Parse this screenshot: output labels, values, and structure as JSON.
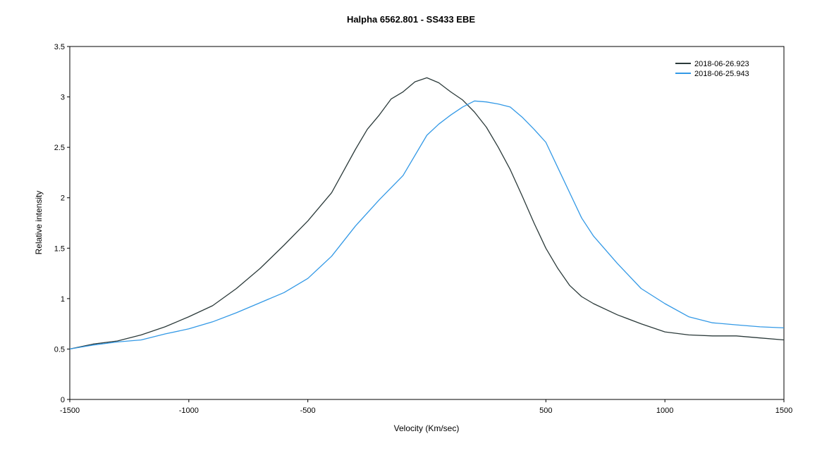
{
  "chart_data": {
    "type": "line",
    "title": "Halpha 6562.801 - SS433   EBE",
    "xlabel": "Velocity (Km/sec)",
    "ylabel": "Relative intensity",
    "xlim": [
      -1500,
      1500
    ],
    "ylim": [
      0,
      3.5
    ],
    "x_ticks": [
      -1500,
      -1000,
      -500,
      500,
      1000,
      1500
    ],
    "x_tick_labels": [
      "-1500",
      "-1000",
      "-500",
      "500",
      "1000",
      "1500"
    ],
    "y_ticks": [
      0,
      0.5,
      1,
      1.5,
      2,
      2.5,
      3,
      3.5
    ],
    "y_tick_labels": [
      "0",
      "0.5",
      "1",
      "1.5",
      "2",
      "2.5",
      "3",
      "3.5"
    ],
    "grid": false,
    "legend_position": "top-right",
    "series": [
      {
        "name": "2018-06-26.923",
        "color": "#2b3a3a",
        "x": [
          -1500,
          -1400,
          -1300,
          -1200,
          -1100,
          -1000,
          -900,
          -800,
          -700,
          -600,
          -500,
          -400,
          -300,
          -250,
          -200,
          -150,
          -100,
          -50,
          0,
          50,
          100,
          150,
          200,
          250,
          300,
          350,
          400,
          450,
          500,
          550,
          600,
          650,
          700,
          800,
          900,
          1000,
          1100,
          1200,
          1300,
          1400,
          1500
        ],
        "y": [
          0.5,
          0.55,
          0.58,
          0.64,
          0.72,
          0.82,
          0.93,
          1.1,
          1.3,
          1.53,
          1.77,
          2.05,
          2.48,
          2.68,
          2.82,
          2.98,
          3.05,
          3.15,
          3.19,
          3.14,
          3.05,
          2.97,
          2.85,
          2.7,
          2.5,
          2.28,
          2.02,
          1.75,
          1.5,
          1.3,
          1.13,
          1.02,
          0.95,
          0.84,
          0.75,
          0.67,
          0.64,
          0.63,
          0.63,
          0.61,
          0.59
        ]
      },
      {
        "name": "2018-06-25.943",
        "color": "#3399e6",
        "x": [
          -1500,
          -1400,
          -1300,
          -1200,
          -1100,
          -1000,
          -900,
          -800,
          -700,
          -600,
          -500,
          -400,
          -300,
          -200,
          -100,
          0,
          50,
          100,
          150,
          200,
          250,
          300,
          350,
          400,
          450,
          500,
          550,
          600,
          650,
          700,
          800,
          900,
          1000,
          1100,
          1200,
          1300,
          1400,
          1500
        ],
        "y": [
          0.5,
          0.54,
          0.57,
          0.59,
          0.65,
          0.7,
          0.77,
          0.86,
          0.96,
          1.06,
          1.2,
          1.42,
          1.72,
          1.98,
          2.22,
          2.62,
          2.73,
          2.82,
          2.9,
          2.96,
          2.95,
          2.93,
          2.9,
          2.8,
          2.68,
          2.55,
          2.3,
          2.05,
          1.8,
          1.62,
          1.35,
          1.1,
          0.95,
          0.82,
          0.76,
          0.74,
          0.72,
          0.71
        ]
      }
    ]
  }
}
